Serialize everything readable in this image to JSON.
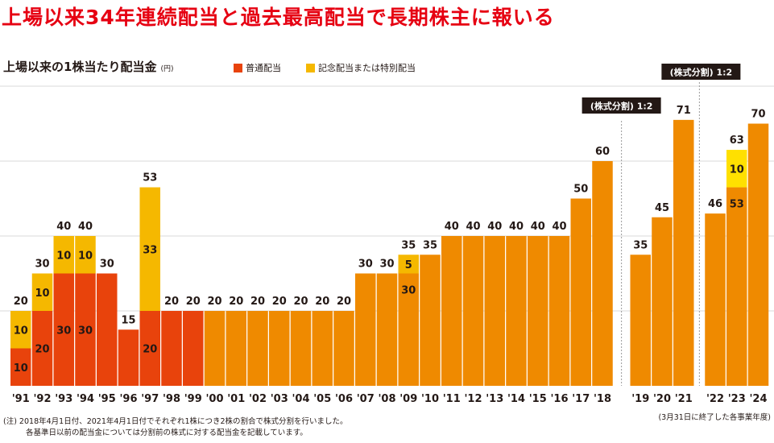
{
  "headline": "上場以来34年連続配当と過去最高配当で長期株主に報いる",
  "colors": {
    "regular_red": "#e8430c",
    "regular_orange": "#ef8a00",
    "special": "#f5b800",
    "special_bright": "#ffe000",
    "headline": "#e60012",
    "grid": "#d9d9d9",
    "callout_bg": "#231815"
  },
  "notes": {
    "line1": "(注) 2018年4月1日付、2021年4月1日付でそれぞれ1株につき2株の割合で株式分割を行いました。",
    "line2": "各基準日以前の配当金については分割前の株式に対する配当金を記載しています。",
    "period": "(3月31日に終了した各事業年度)"
  },
  "chart_data": {
    "type": "bar",
    "stacked": true,
    "title": "上場以来の1株当たり配当金",
    "unit": "(円)",
    "ylim": [
      0,
      90
    ],
    "grid": true,
    "legend_position": "top",
    "categories": [
      "'91",
      "'92",
      "'93",
      "'94",
      "'95",
      "'96",
      "'97",
      "'98",
      "'99",
      "'00",
      "'01",
      "'02",
      "'03",
      "'04",
      "'05",
      "'06",
      "'07",
      "'08",
      "'09",
      "'10",
      "'11",
      "'12",
      "'13",
      "'14",
      "'15",
      "'16",
      "'17",
      "'18",
      "'19",
      "'20",
      "'21",
      "'22",
      "'23",
      "'24"
    ],
    "series": [
      {
        "name": "普通配当",
        "values": [
          10,
          20,
          30,
          30,
          30,
          15,
          20,
          20,
          20,
          20,
          20,
          20,
          20,
          20,
          20,
          20,
          30,
          30,
          30,
          35,
          40,
          40,
          40,
          40,
          40,
          40,
          50,
          60,
          35,
          45,
          71,
          46,
          53,
          70
        ]
      },
      {
        "name": "記念配当または特別配当",
        "values": [
          10,
          10,
          10,
          10,
          0,
          0,
          33,
          0,
          0,
          0,
          0,
          0,
          0,
          0,
          0,
          0,
          0,
          0,
          5,
          0,
          0,
          0,
          0,
          0,
          0,
          0,
          0,
          0,
          0,
          0,
          0,
          0,
          10,
          0
        ]
      }
    ],
    "totals": [
      20,
      30,
      40,
      40,
      30,
      15,
      53,
      20,
      20,
      20,
      20,
      20,
      20,
      20,
      20,
      20,
      30,
      30,
      35,
      35,
      40,
      40,
      40,
      40,
      40,
      40,
      50,
      60,
      35,
      45,
      71,
      46,
      63,
      70
    ],
    "annotations": [
      {
        "label": "(株式分割) 1:2",
        "after_category": "'18"
      },
      {
        "label": "(株式分割) 1:2",
        "after_category": "'21"
      }
    ]
  }
}
